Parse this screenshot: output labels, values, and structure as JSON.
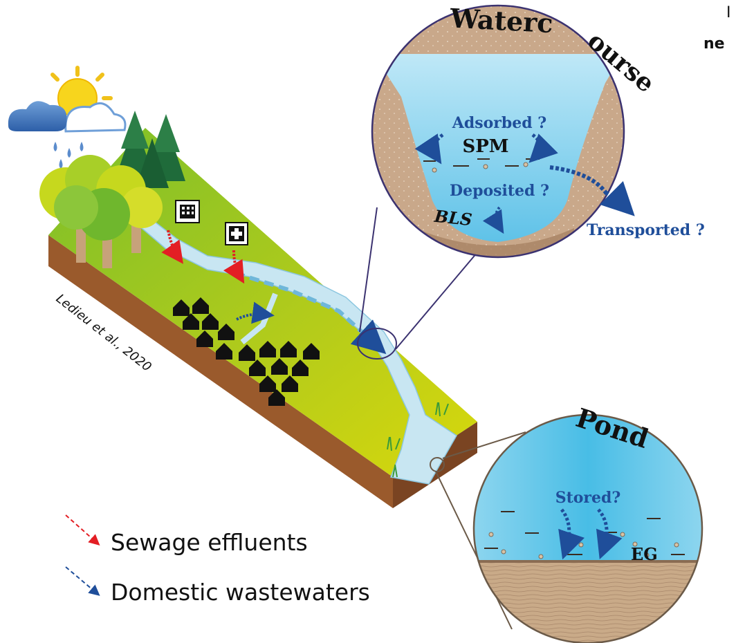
{
  "top_right_partial": {
    "line1": "I",
    "line2": "ne"
  },
  "credit": "Ledieu et al., 2020",
  "watercourse": {
    "title": "Watercourse",
    "adsorbed": "Adsorbed ?",
    "spm": "SPM",
    "deposited": "Deposited ?",
    "bls": "BLS",
    "transported": "Transported ?"
  },
  "pond": {
    "title": "Pond",
    "stored": "Stored?",
    "eg": "EG"
  },
  "legend": {
    "sewage": "Sewage effluents",
    "domestic": "Domestic wastewaters",
    "sewage_color": "#e31e24",
    "domestic_color": "#1f4e9a"
  },
  "icons": [
    "sun-icon",
    "rain-cloud-icon",
    "tree-icon",
    "house-icon",
    "building-icon",
    "hospital-icon"
  ]
}
